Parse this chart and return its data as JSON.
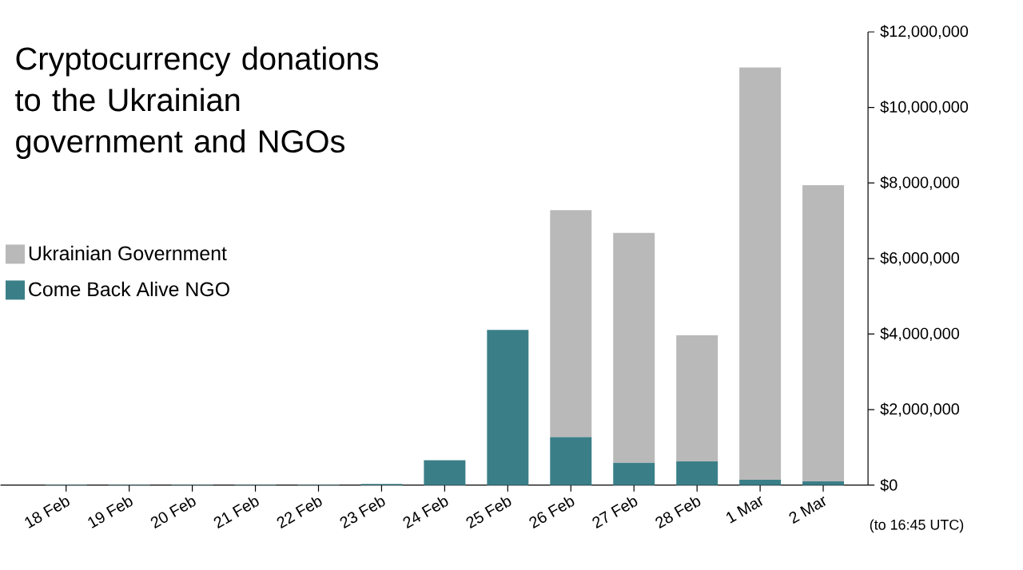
{
  "chart_data": {
    "type": "bar",
    "title": "Cryptocurrency donations to the Ukrainian government and NGOs",
    "stacked": true,
    "categories": [
      "18 Feb",
      "19 Feb",
      "20 Feb",
      "21 Feb",
      "22 Feb",
      "23 Feb",
      "24 Feb",
      "25 Feb",
      "26 Feb",
      "27 Feb",
      "28 Feb",
      "1 Mar",
      "2 Mar"
    ],
    "series": [
      {
        "name": "Come Back Alive NGO",
        "color": "#3a7f88",
        "values": [
          10000,
          10000,
          10000,
          10000,
          10000,
          30000,
          660000,
          4110000,
          1270000,
          590000,
          630000,
          140000,
          100000
        ]
      },
      {
        "name": "Ukrainian Government",
        "color": "#b9b9b9",
        "values": [
          0,
          0,
          0,
          0,
          0,
          0,
          0,
          0,
          6010000,
          6090000,
          3340000,
          10920000,
          7840000
        ]
      }
    ],
    "ylim": [
      0,
      12000000
    ],
    "yticks": [
      {
        "value": 0,
        "label": "$0"
      },
      {
        "value": 2000000,
        "label": "$2,000,000"
      },
      {
        "value": 4000000,
        "label": "$4,000,000"
      },
      {
        "value": 6000000,
        "label": "$6,000,000"
      },
      {
        "value": 8000000,
        "label": "$8,000,000"
      },
      {
        "value": 10000000,
        "label": "$10,000,000"
      },
      {
        "value": 12000000,
        "label": "$12,000,000"
      }
    ],
    "legend": "left",
    "grid": false,
    "annotations": [
      "(to 16:45 UTC)"
    ]
  }
}
